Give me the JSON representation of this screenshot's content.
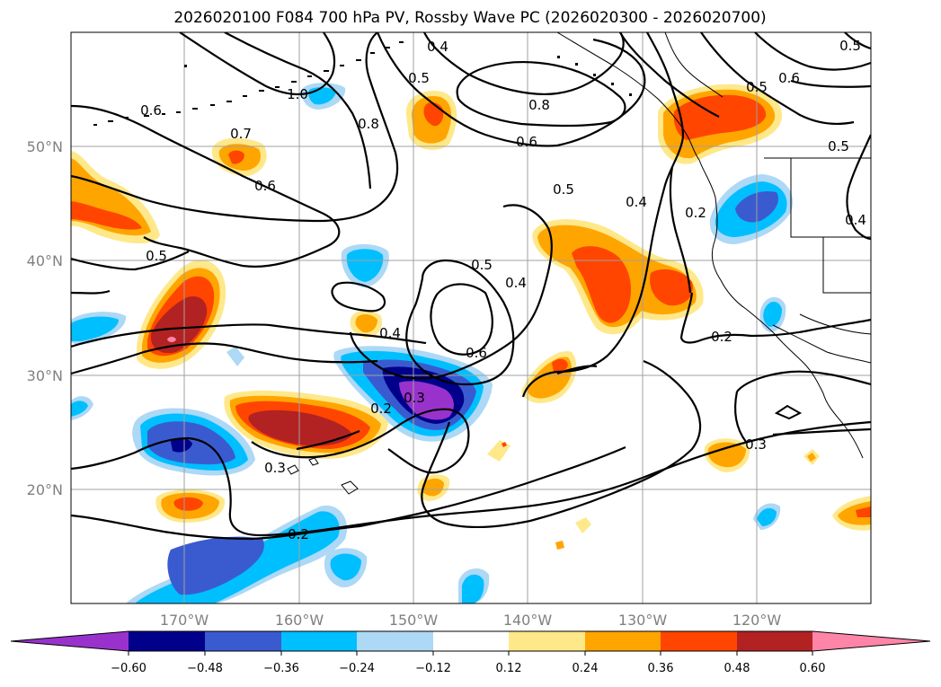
{
  "title": "2026020100 F084 700 hPa PV, Rossby Wave PC (2026020300 - 2026020700)",
  "map": {
    "lon_labels": [
      "170°W",
      "160°W",
      "150°W",
      "140°W",
      "130°W",
      "120°W"
    ],
    "lat_labels": [
      "50°N",
      "40°N",
      "30°N",
      "20°N"
    ],
    "gridlines": true
  },
  "colorbar": {
    "tick_labels": [
      "−0.60",
      "−0.48",
      "−0.36",
      "−0.24",
      "−0.12",
      "0.12",
      "0.24",
      "0.36",
      "0.48",
      "0.60"
    ],
    "colors": [
      "#9932cc",
      "#00008b",
      "#3a5bd0",
      "#00bfff",
      "#add8f6",
      "#ffffff",
      "#ffe88a",
      "#ffa500",
      "#ff4500",
      "#b22222",
      "#ff85a8"
    ]
  },
  "contour_labels": [
    "0.4",
    "0.5",
    "1.0",
    "0.8",
    "0.6",
    "0.7",
    "0.6",
    "0.8",
    "0.5",
    "0.6",
    "0.6",
    "0.5",
    "0.5",
    "0.4",
    "0.2",
    "0.5",
    "0.5",
    "0.4",
    "0.4",
    "0.6",
    "0.3",
    "0.2",
    "0.3",
    "0.2",
    "0.2",
    "0.3",
    "0.5",
    "0.4"
  ],
  "colors": {
    "purple": "#9932cc",
    "navy": "#00008b",
    "royal": "#3a5bd0",
    "sky": "#00bfff",
    "pale_blue": "#add8f6",
    "pale_yellow": "#ffe88a",
    "orange": "#ffa500",
    "red_orange": "#ff4500",
    "firebrick": "#b22222",
    "pink": "#ff85a8",
    "grid": "#a0a0a0",
    "contour": "#000000"
  }
}
